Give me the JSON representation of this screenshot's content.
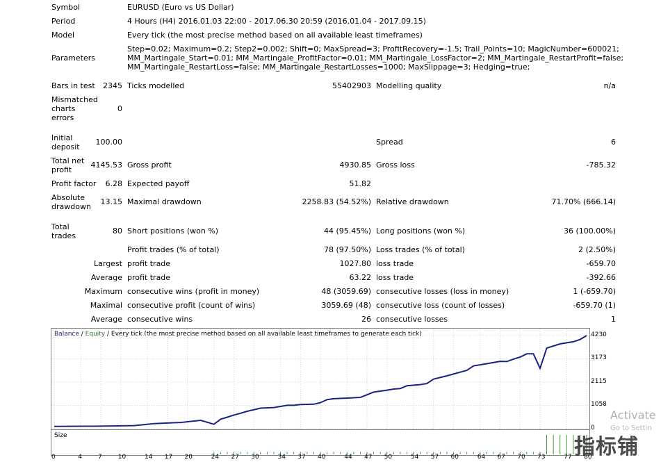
{
  "info": {
    "symbol": {
      "label": "Symbol",
      "value": "EURUSD (Euro vs US Dollar)"
    },
    "period": {
      "label": "Period",
      "value": "4 Hours (H4) 2016.01.03 22:00 - 2017.06.30 20:59 (2016.01.04 - 2017.09.15)"
    },
    "model": {
      "label": "Model",
      "value": "Every tick (the most precise method based on all available least timeframes)"
    },
    "parameters": {
      "label": "Parameters",
      "lines": [
        "Step=0.02; Maximum=0.2; Step2=0.002; Shift=0; MaxSpread=3; ProfitRecovery=-1.5; Trail_Points=10; MagicNumber=600021;",
        "MM_Martingale_Start=0.01; MM_Martingale_ProfitFactor=0.01; MM_Martingale_LossFactor=2; MM_Martingale_RestartProfit=false;",
        "MM_Martingale_RestartLoss=false; MM_Martingale_RestartLosses=1000; MaxSlippage=3; Hedging=true;"
      ]
    }
  },
  "stats": {
    "bars_label": "Bars in test",
    "bars_value": "2345",
    "ticks_label": "Ticks modelled",
    "ticks_value": "55402903",
    "quality_label": "Modelling quality",
    "quality_value": "n/a",
    "mismatched_label": "Mismatched charts errors",
    "mismatched_value": "0",
    "deposit_label": "Initial deposit",
    "deposit_value": "100.00",
    "spread_label": "Spread",
    "spread_value": "6",
    "netprofit_label": "Total net profit",
    "netprofit_value": "4145.53",
    "grossprofit_label": "Gross profit",
    "grossprofit_value": "4930.85",
    "grossloss_label": "Gross loss",
    "grossloss_value": "-785.32",
    "pf_label": "Profit factor",
    "pf_value": "6.28",
    "payoff_label": "Expected payoff",
    "payoff_value": "51.82",
    "absdd_label": "Absolute drawdown",
    "absdd_value": "13.15",
    "maxdd_label": "Maximal drawdown",
    "maxdd_value": "2258.83 (54.52%)",
    "reldd_label": "Relative drawdown",
    "reldd_value": "71.70% (666.14)",
    "trades_label": "Total trades",
    "trades_value": "80",
    "short_label": "Short positions (won %)",
    "short_value": "44 (95.45%)",
    "long_label": "Long positions (won %)",
    "long_value": "36 (100.00%)",
    "profit_trades_label": "Profit trades (% of total)",
    "profit_trades_value": "78 (97.50%)",
    "loss_trades_label": "Loss trades (% of total)",
    "loss_trades_value": "2 (2.50%)",
    "largest_label": "Largest",
    "largest_pt_label": "profit trade",
    "largest_pt_value": "1027.80",
    "largest_lt_label": "loss trade",
    "largest_lt_value": "-659.70",
    "average_label": "Average",
    "average_pt_label": "profit trade",
    "average_pt_value": "63.22",
    "average_lt_label": "loss trade",
    "average_lt_value": "-392.66",
    "maximum_label": "Maximum",
    "max_cw_label": "consecutive wins (profit in money)",
    "max_cw_value": "48 (3059.69)",
    "max_cl_label": "consecutive losses (loss in money)",
    "max_cl_value": "1 (-659.70)",
    "maximal_label": "Maximal",
    "mxl_cp_label": "consecutive profit (count of wins)",
    "mxl_cp_value": "3059.69 (48)",
    "mxl_cl_label": "consecutive loss (count of losses)",
    "mxl_cl_value": "-659.70 (1)",
    "average2_label": "Average",
    "avg_cw_label": "consecutive wins",
    "avg_cw_value": "26",
    "avg_cl_label": "consecutive losses",
    "avg_cl_value": "1"
  },
  "chart": {
    "legend_balance": "Balance",
    "legend_sep": " / ",
    "legend_equity": "Equity",
    "legend_rest": " / Every tick (the most precise method based on all available least timeframes to generate each tick)",
    "size_label": "Size",
    "balance_color": "#1a237e",
    "equity_color": "#2e7d32",
    "size_color": "#2e9e2e"
  },
  "chart_data": {
    "type": "line",
    "y_ticks": [
      0,
      1058,
      2115,
      3173,
      4230
    ],
    "ylim": [
      0,
      4230
    ],
    "x_ticks": [
      0,
      4,
      7,
      10,
      14,
      17,
      20,
      24,
      27,
      30,
      34,
      37,
      40,
      44,
      47,
      50,
      54,
      57,
      60,
      64,
      67,
      70,
      73,
      77,
      80
    ],
    "xlim": [
      0,
      80
    ],
    "series": [
      {
        "name": "Balance",
        "x": [
          0,
          6,
          12,
          15,
          19,
          22,
          24,
          25,
          26,
          27,
          28,
          29,
          31,
          33,
          35,
          36,
          37,
          39,
          40,
          41,
          42,
          44,
          46,
          48,
          50,
          51,
          52,
          53,
          55,
          56,
          57,
          59,
          62,
          63,
          65,
          67,
          68,
          69,
          70,
          71,
          72,
          73,
          74,
          76,
          78,
          79,
          80
        ],
        "y": [
          100,
          110,
          140,
          230,
          280,
          380,
          200,
          430,
          520,
          620,
          700,
          790,
          930,
          960,
          1060,
          1060,
          1100,
          1110,
          1180,
          1320,
          1360,
          1390,
          1420,
          1660,
          1750,
          1800,
          1820,
          1950,
          2000,
          2050,
          2250,
          2400,
          2650,
          2850,
          2950,
          3060,
          3050,
          3160,
          3250,
          3400,
          3400,
          2740,
          3660,
          3850,
          3950,
          4050,
          4230
        ]
      }
    ],
    "size_bars": {
      "x": [
        24,
        25,
        26,
        27,
        28,
        29,
        30,
        31,
        32,
        33,
        34,
        35,
        36,
        37,
        38,
        39,
        40,
        41,
        42,
        43,
        44,
        45,
        46,
        47,
        48,
        49,
        50,
        51,
        52,
        53,
        54,
        55,
        56,
        57,
        58,
        59,
        60,
        61,
        62,
        63,
        64,
        65,
        66,
        67,
        68,
        69,
        70,
        71,
        72,
        73,
        74,
        75,
        76,
        77,
        78,
        79,
        80
      ],
      "values": [
        1,
        1,
        1,
        1,
        1,
        1,
        1,
        1,
        1,
        1,
        1,
        1,
        1,
        1,
        1,
        1,
        1,
        1,
        1,
        1,
        1,
        1,
        1,
        1,
        1,
        1,
        1,
        1,
        1,
        1,
        1,
        1,
        1,
        1,
        1,
        1,
        1,
        1,
        1,
        1,
        1,
        1,
        1,
        1,
        1,
        1,
        1,
        1,
        1,
        1,
        8,
        8,
        8,
        8,
        8,
        8,
        8
      ],
      "ymax": 8
    }
  },
  "watermark": {
    "activate": "Activate",
    "goto": "Go to Settin",
    "logo": "指标铺"
  }
}
